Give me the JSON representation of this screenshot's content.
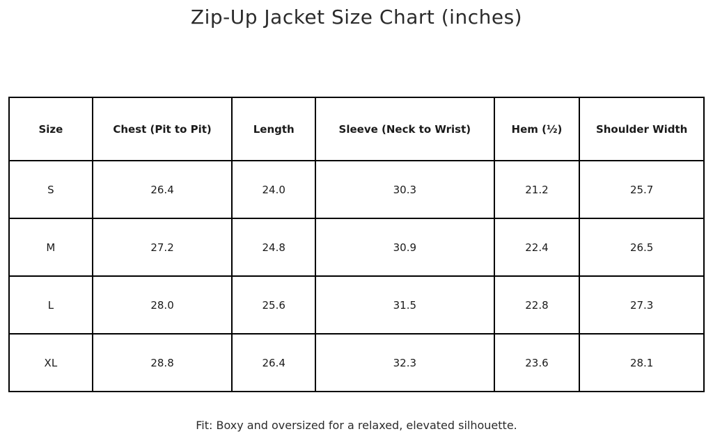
{
  "title": "Zip-Up Jacket Size Chart (inches)",
  "footer": "Fit: Boxy and oversized for a relaxed, elevated silhouette.",
  "colors": {
    "background": "#ffffff",
    "text": "#222222",
    "table_border": "#000000"
  },
  "chart_data": {
    "type": "table",
    "title": "Zip-Up Jacket Size Chart (inches)",
    "columns": [
      "Size",
      "Chest (Pit to Pit)",
      "Length",
      "Sleeve (Neck to Wrist)",
      "Hem (½)",
      "Shoulder Width"
    ],
    "rows": [
      [
        "S",
        "26.4",
        "24.0",
        "30.3",
        "21.2",
        "25.7"
      ],
      [
        "M",
        "27.2",
        "24.8",
        "30.9",
        "22.4",
        "26.5"
      ],
      [
        "L",
        "28.0",
        "25.6",
        "31.5",
        "22.8",
        "27.3"
      ],
      [
        "XL",
        "28.8",
        "26.4",
        "32.3",
        "23.6",
        "28.1"
      ]
    ],
    "footer_note": "Fit: Boxy and oversized for a relaxed, elevated silhouette."
  }
}
